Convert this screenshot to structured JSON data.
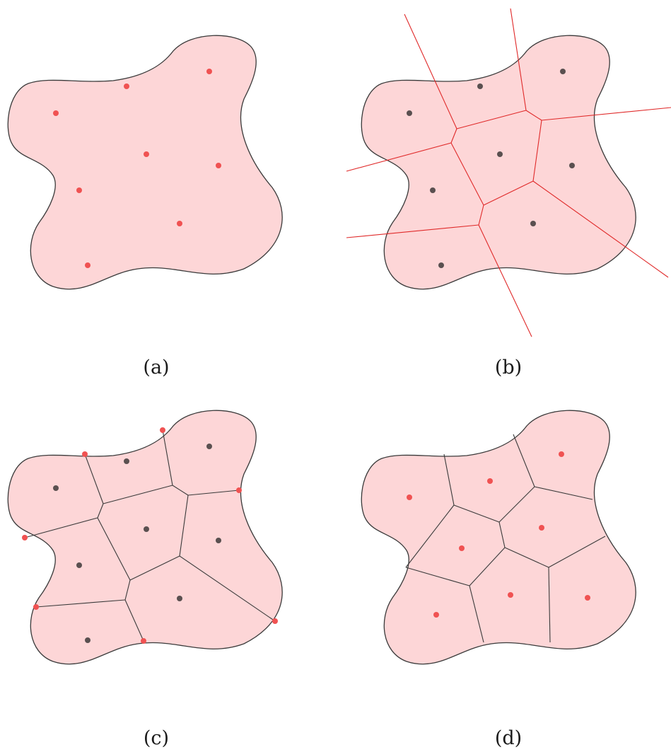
{
  "panels": [
    {
      "id": "a",
      "caption": "(a)"
    },
    {
      "id": "b",
      "caption": "(b)"
    },
    {
      "id": "c",
      "caption": "(c)"
    },
    {
      "id": "d",
      "caption": "(d)"
    }
  ],
  "colors": {
    "region_fill": "#fdd6d7",
    "outline": "#3a3a3a",
    "site_highlight": "#f05252",
    "site_default": "#5a5050",
    "voronoi_line": "#e02a2a"
  }
}
